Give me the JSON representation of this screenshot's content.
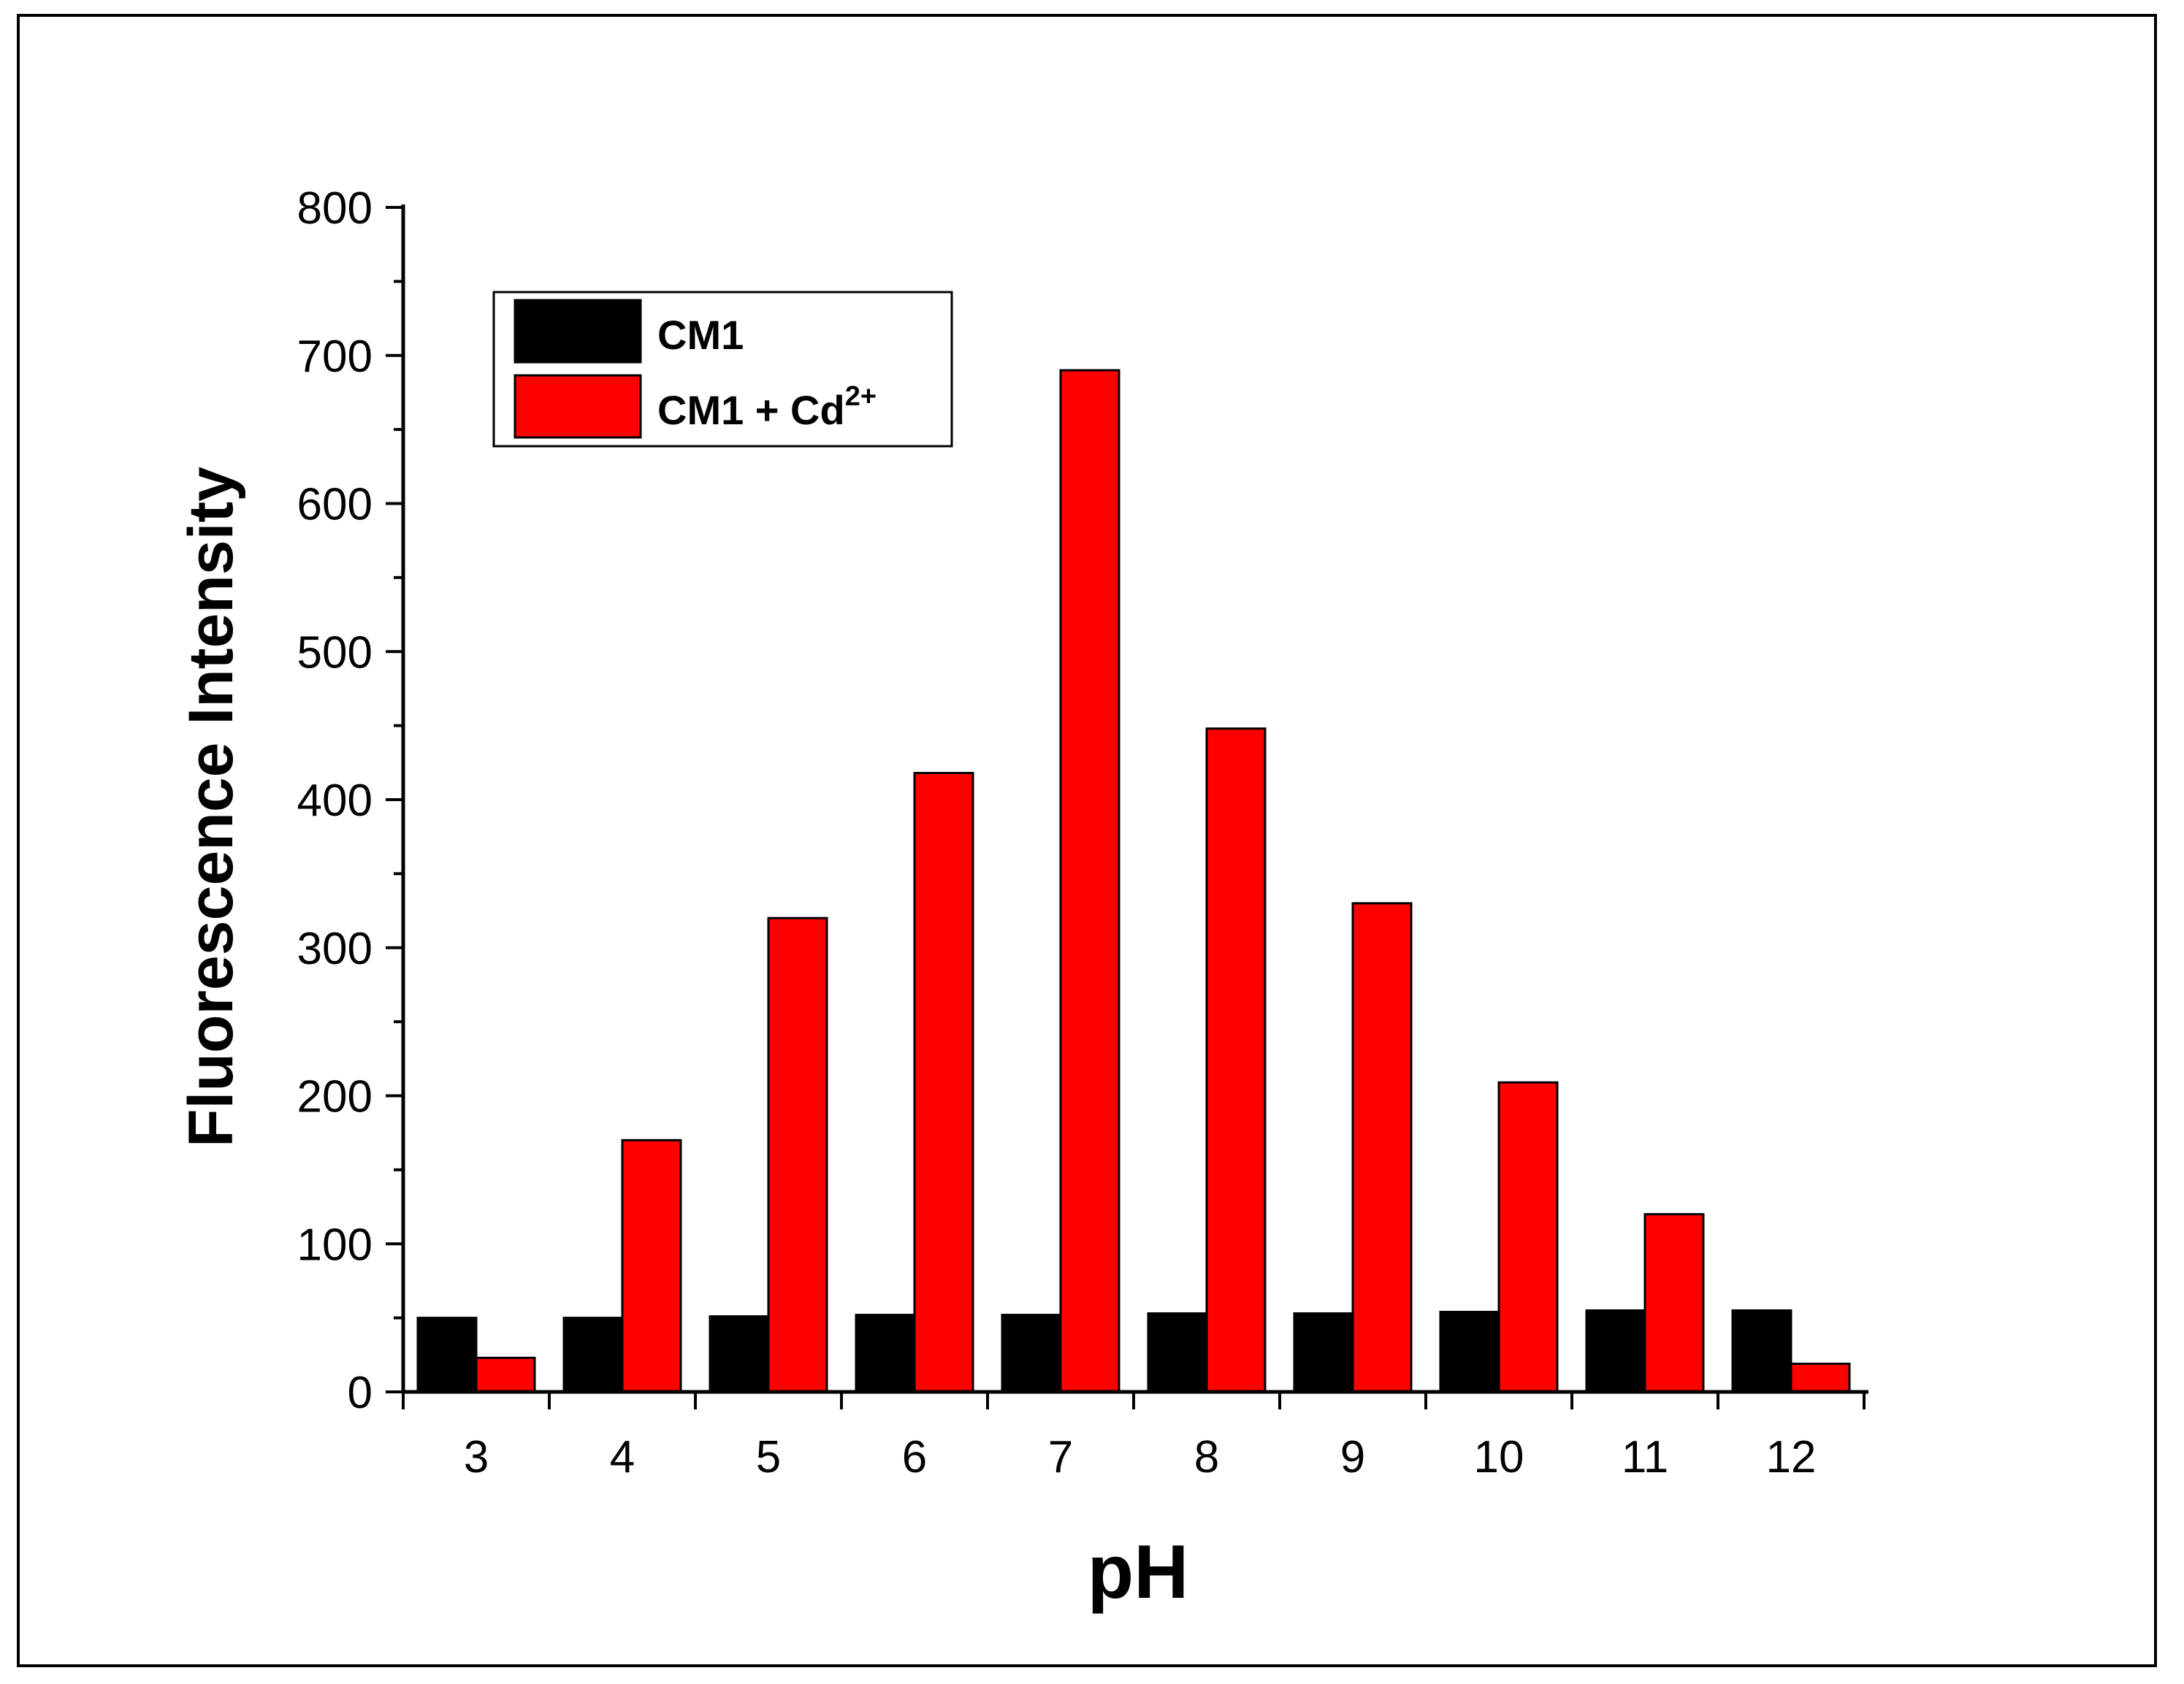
{
  "chart_data": {
    "type": "bar",
    "title": "",
    "xlabel": "pH",
    "ylabel": "Fluorescence Intensity",
    "categories": [
      "3",
      "4",
      "5",
      "6",
      "7",
      "8",
      "9",
      "10",
      "11",
      "12"
    ],
    "ylim": [
      0,
      800
    ],
    "yticks": [
      "0",
      "100",
      "200",
      "300",
      "400",
      "500",
      "600",
      "700",
      "800"
    ],
    "series": [
      {
        "name": "CM1",
        "color": "#000000",
        "values": [
          50,
          50,
          51,
          52,
          52,
          53,
          53,
          54,
          55,
          55
        ]
      },
      {
        "name": "CM1 + Cd",
        "name_superscript": "2+",
        "color": "#ff0000",
        "values": [
          23,
          170,
          320,
          418,
          690,
          448,
          330,
          209,
          120,
          19
        ]
      }
    ],
    "legend": {
      "placement": "top-left"
    },
    "grid": false
  }
}
